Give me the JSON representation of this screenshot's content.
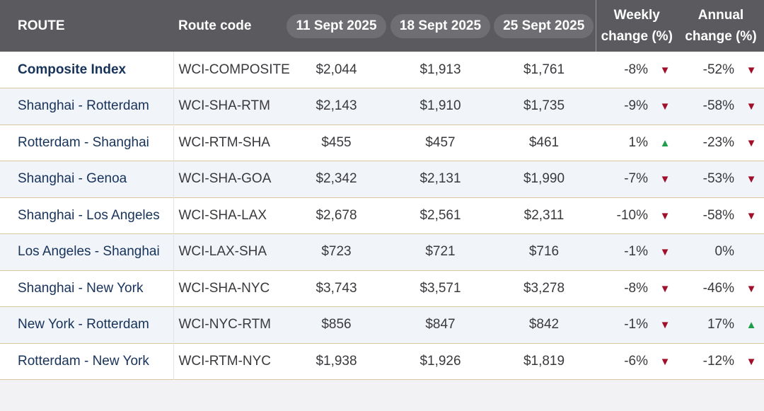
{
  "chart_data": {
    "type": "table",
    "columns": {
      "route": "ROUTE",
      "code": "Route code",
      "date1": "11 Sept 2025",
      "date2": "18 Sept 2025",
      "date3": "25 Sept 2025",
      "weekly_line1": "Weekly",
      "weekly_line2": "change (%)",
      "annual_line1": "Annual",
      "annual_line2": "change (%)"
    },
    "rows": [
      {
        "route": "Composite Index",
        "code": "WCI-COMPOSITE",
        "d1": "$2,044",
        "d2": "$1,913",
        "d3": "$1,761",
        "weekly": "-8%",
        "weekly_dir": "down",
        "annual": "-52%",
        "annual_dir": "down"
      },
      {
        "route": "Shanghai - Rotterdam",
        "code": "WCI-SHA-RTM",
        "d1": "$2,143",
        "d2": "$1,910",
        "d3": "$1,735",
        "weekly": "-9%",
        "weekly_dir": "down",
        "annual": "-58%",
        "annual_dir": "down"
      },
      {
        "route": "Rotterdam - Shanghai",
        "code": "WCI-RTM-SHA",
        "d1": "$455",
        "d2": "$457",
        "d3": "$461",
        "weekly": "1%",
        "weekly_dir": "up",
        "annual": "-23%",
        "annual_dir": "down"
      },
      {
        "route": "Shanghai - Genoa",
        "code": "WCI-SHA-GOA",
        "d1": "$2,342",
        "d2": "$2,131",
        "d3": "$1,990",
        "weekly": "-7%",
        "weekly_dir": "down",
        "annual": "-53%",
        "annual_dir": "down"
      },
      {
        "route": "Shanghai - Los Angeles",
        "code": "WCI-SHA-LAX",
        "d1": "$2,678",
        "d2": "$2,561",
        "d3": "$2,311",
        "weekly": "-10%",
        "weekly_dir": "down",
        "annual": "-58%",
        "annual_dir": "down"
      },
      {
        "route": "Los Angeles - Shanghai",
        "code": "WCI-LAX-SHA",
        "d1": "$723",
        "d2": "$721",
        "d3": "$716",
        "weekly": "-1%",
        "weekly_dir": "down",
        "annual": "0%",
        "annual_dir": "none"
      },
      {
        "route": "Shanghai - New York",
        "code": "WCI-SHA-NYC",
        "d1": "$3,743",
        "d2": "$3,571",
        "d3": "$3,278",
        "weekly": "-8%",
        "weekly_dir": "down",
        "annual": "-46%",
        "annual_dir": "down"
      },
      {
        "route": "New York - Rotterdam",
        "code": "WCI-NYC-RTM",
        "d1": "$856",
        "d2": "$847",
        "d3": "$842",
        "weekly": "-1%",
        "weekly_dir": "down",
        "annual": "17%",
        "annual_dir": "up"
      },
      {
        "route": "Rotterdam - New York",
        "code": "WCI-RTM-NYC",
        "d1": "$1,938",
        "d2": "$1,926",
        "d3": "$1,819",
        "weekly": "-6%",
        "weekly_dir": "down",
        "annual": "-12%",
        "annual_dir": "down"
      }
    ],
    "colors": {
      "header_bg": "#5b5b5f",
      "date_pill_bg": "#6f6f73",
      "route_text": "#17335a",
      "arrow_down": "#a0102a",
      "arrow_up": "#1e9e4a",
      "row_divider": "#d9c7a0"
    }
  }
}
